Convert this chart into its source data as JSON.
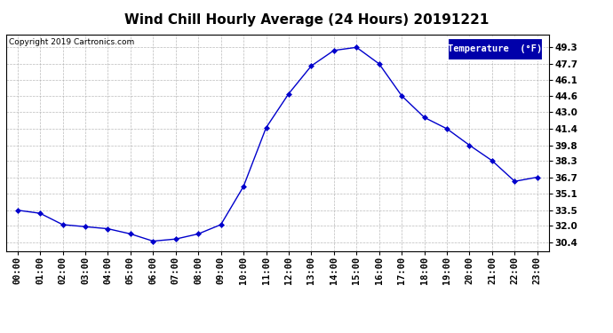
{
  "title": "Wind Chill Hourly Average (24 Hours) 20191221",
  "copyright_text": "Copyright 2019 Cartronics.com",
  "legend_label": "Temperature  (°F)",
  "hours": [
    0,
    1,
    2,
    3,
    4,
    5,
    6,
    7,
    8,
    9,
    10,
    11,
    12,
    13,
    14,
    15,
    16,
    17,
    18,
    19,
    20,
    21,
    22,
    23
  ],
  "hour_labels": [
    "00:00",
    "01:00",
    "02:00",
    "03:00",
    "04:00",
    "05:00",
    "06:00",
    "07:00",
    "08:00",
    "09:00",
    "10:00",
    "11:00",
    "12:00",
    "13:00",
    "14:00",
    "15:00",
    "16:00",
    "17:00",
    "18:00",
    "19:00",
    "20:00",
    "21:00",
    "22:00",
    "23:00"
  ],
  "values": [
    33.5,
    33.2,
    32.1,
    31.9,
    31.7,
    31.2,
    30.5,
    30.7,
    31.2,
    32.1,
    35.8,
    41.5,
    44.8,
    47.5,
    49.0,
    49.3,
    47.7,
    44.6,
    42.5,
    41.4,
    39.8,
    38.3,
    36.3,
    36.7
  ],
  "line_color": "#0000cc",
  "marker": "D",
  "marker_size": 3,
  "ylim_min": 29.5,
  "ylim_max": 50.5,
  "yticks": [
    30.4,
    32.0,
    33.5,
    35.1,
    36.7,
    38.3,
    39.8,
    41.4,
    43.0,
    44.6,
    46.1,
    47.7,
    49.3
  ],
  "background_color": "#ffffff",
  "plot_bg_color": "#ffffff",
  "grid_color": "#aaaaaa",
  "title_fontsize": 11,
  "tick_fontsize": 7.5,
  "copyright_fontsize": 6.5,
  "legend_bg": "#0000aa",
  "legend_fg": "#ffffff",
  "legend_fontsize": 7.5
}
